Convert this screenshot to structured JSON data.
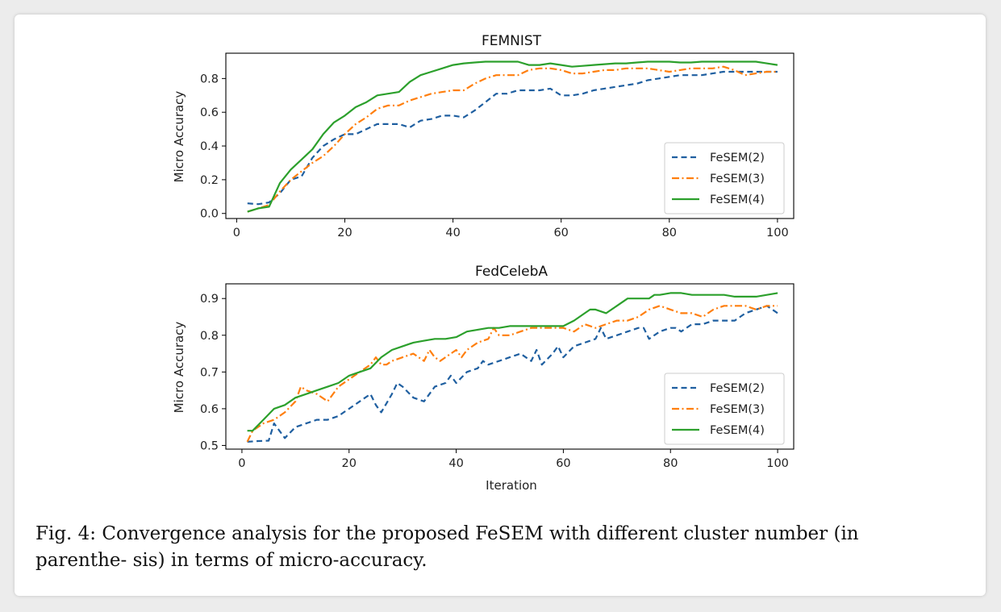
{
  "caption": "Fig. 4: Convergence analysis for the proposed FeSEM with different cluster number (in parenthe- sis) in terms of micro-accuracy.",
  "series_styles": [
    {
      "color": "#1f5fa0",
      "dash": "7,4.5"
    },
    {
      "color": "#ff7f0e",
      "dash": "9,3.5,2,3.5"
    },
    {
      "color": "#2ca02c",
      "dash": ""
    }
  ],
  "chart_data": [
    {
      "type": "line",
      "title": "FEMNIST",
      "xlabel": "",
      "ylabel": "Micro Accuracy",
      "xlim": [
        -2,
        103
      ],
      "ylim": [
        -0.03,
        0.95
      ],
      "xticks": [
        0,
        20,
        40,
        60,
        80,
        100
      ],
      "yticks": [
        0.0,
        0.2,
        0.4,
        0.6,
        0.8
      ],
      "ytick_labels": [
        "0.0",
        "0.2",
        "0.4",
        "0.6",
        "0.8"
      ],
      "legend_position": "lower-right",
      "series": [
        {
          "name": "FeSEM(2)",
          "x": [
            2,
            4,
            6,
            8,
            10,
            12,
            14,
            16,
            18,
            20,
            22,
            24,
            26,
            28,
            30,
            32,
            34,
            36,
            38,
            40,
            42,
            44,
            46,
            48,
            50,
            52,
            54,
            56,
            58,
            60,
            62,
            64,
            66,
            68,
            70,
            72,
            74,
            76,
            78,
            80,
            82,
            84,
            86,
            88,
            90,
            92,
            94,
            96,
            98,
            100
          ],
          "y": [
            0.06,
            0.055,
            0.065,
            0.12,
            0.2,
            0.22,
            0.33,
            0.4,
            0.44,
            0.47,
            0.47,
            0.5,
            0.53,
            0.53,
            0.53,
            0.51,
            0.55,
            0.56,
            0.58,
            0.58,
            0.57,
            0.61,
            0.66,
            0.71,
            0.71,
            0.73,
            0.73,
            0.73,
            0.74,
            0.7,
            0.7,
            0.71,
            0.73,
            0.74,
            0.75,
            0.76,
            0.77,
            0.79,
            0.8,
            0.81,
            0.82,
            0.82,
            0.82,
            0.83,
            0.84,
            0.84,
            0.84,
            0.84,
            0.84,
            0.84
          ]
        },
        {
          "name": "FeSEM(3)",
          "x": [
            2,
            4,
            6,
            8,
            10,
            12,
            14,
            16,
            18,
            20,
            22,
            24,
            26,
            28,
            30,
            32,
            34,
            36,
            38,
            40,
            42,
            44,
            46,
            48,
            50,
            52,
            54,
            56,
            58,
            60,
            62,
            64,
            66,
            68,
            70,
            72,
            74,
            76,
            78,
            80,
            82,
            84,
            86,
            88,
            90,
            92,
            94,
            96,
            98,
            100
          ],
          "y": [
            0.01,
            0.03,
            0.05,
            0.13,
            0.2,
            0.25,
            0.3,
            0.34,
            0.4,
            0.47,
            0.53,
            0.57,
            0.62,
            0.64,
            0.64,
            0.67,
            0.69,
            0.71,
            0.72,
            0.73,
            0.73,
            0.77,
            0.8,
            0.82,
            0.82,
            0.82,
            0.85,
            0.86,
            0.86,
            0.85,
            0.83,
            0.83,
            0.84,
            0.85,
            0.85,
            0.86,
            0.86,
            0.86,
            0.85,
            0.84,
            0.85,
            0.86,
            0.86,
            0.86,
            0.87,
            0.85,
            0.82,
            0.83,
            0.84,
            0.84
          ]
        },
        {
          "name": "FeSEM(4)",
          "x": [
            2,
            4,
            6,
            8,
            10,
            12,
            14,
            16,
            18,
            20,
            22,
            24,
            26,
            28,
            30,
            32,
            34,
            36,
            38,
            40,
            42,
            44,
            46,
            48,
            50,
            52,
            54,
            56,
            58,
            60,
            62,
            64,
            66,
            68,
            70,
            72,
            74,
            76,
            78,
            80,
            82,
            84,
            86,
            88,
            90,
            92,
            94,
            96,
            98,
            100
          ],
          "y": [
            0.01,
            0.03,
            0.04,
            0.18,
            0.26,
            0.32,
            0.38,
            0.47,
            0.54,
            0.58,
            0.63,
            0.66,
            0.7,
            0.71,
            0.72,
            0.78,
            0.82,
            0.84,
            0.86,
            0.88,
            0.89,
            0.895,
            0.9,
            0.9,
            0.9,
            0.9,
            0.88,
            0.88,
            0.89,
            0.88,
            0.87,
            0.875,
            0.88,
            0.885,
            0.89,
            0.89,
            0.895,
            0.9,
            0.9,
            0.9,
            0.895,
            0.895,
            0.9,
            0.9,
            0.9,
            0.9,
            0.9,
            0.9,
            0.89,
            0.88
          ]
        }
      ]
    },
    {
      "type": "line",
      "title": "FedCelebA",
      "xlabel": "Iteration",
      "ylabel": "Micro Accuracy",
      "xlim": [
        -3,
        103
      ],
      "ylim": [
        0.49,
        0.94
      ],
      "xticks": [
        0,
        20,
        40,
        60,
        80,
        100
      ],
      "yticks": [
        0.5,
        0.6,
        0.7,
        0.8,
        0.9
      ],
      "ytick_labels": [
        "0.5",
        "0.6",
        "0.7",
        "0.8",
        "0.9"
      ],
      "legend_position": "lower-right",
      "series": [
        {
          "name": "FeSEM(2)",
          "x": [
            1,
            3,
            5,
            6,
            7,
            8,
            10,
            12,
            14,
            16,
            18,
            19,
            20,
            22,
            24,
            25,
            26,
            28,
            29,
            30,
            32,
            34,
            36,
            38,
            39,
            40,
            42,
            44,
            45,
            46,
            48,
            50,
            52,
            54,
            55,
            56,
            58,
            59,
            60,
            62,
            64,
            66,
            67,
            68,
            70,
            72,
            74,
            75,
            76,
            78,
            80,
            81,
            82,
            84,
            86,
            88,
            90,
            92,
            94,
            96,
            98,
            100
          ],
          "y": [
            0.51,
            0.512,
            0.513,
            0.56,
            0.54,
            0.52,
            0.55,
            0.56,
            0.57,
            0.57,
            0.58,
            0.59,
            0.6,
            0.62,
            0.64,
            0.61,
            0.59,
            0.64,
            0.67,
            0.66,
            0.63,
            0.62,
            0.66,
            0.67,
            0.69,
            0.67,
            0.7,
            0.71,
            0.73,
            0.72,
            0.73,
            0.74,
            0.75,
            0.73,
            0.76,
            0.72,
            0.75,
            0.77,
            0.74,
            0.77,
            0.78,
            0.79,
            0.82,
            0.79,
            0.8,
            0.81,
            0.82,
            0.82,
            0.79,
            0.81,
            0.82,
            0.82,
            0.81,
            0.83,
            0.83,
            0.84,
            0.84,
            0.84,
            0.86,
            0.87,
            0.88,
            0.86
          ]
        },
        {
          "name": "FeSEM(3)",
          "x": [
            1,
            2,
            4,
            6,
            8,
            10,
            11,
            12,
            14,
            16,
            18,
            20,
            22,
            24,
            25,
            26,
            27,
            28,
            30,
            32,
            34,
            35,
            36,
            37,
            38,
            40,
            41,
            42,
            44,
            46,
            47,
            48,
            50,
            52,
            54,
            56,
            58,
            60,
            62,
            64,
            66,
            68,
            70,
            72,
            74,
            76,
            78,
            80,
            82,
            84,
            86,
            88,
            90,
            92,
            94,
            96,
            98,
            100
          ],
          "y": [
            0.51,
            0.54,
            0.56,
            0.57,
            0.59,
            0.62,
            0.66,
            0.65,
            0.64,
            0.62,
            0.66,
            0.68,
            0.7,
            0.72,
            0.74,
            0.72,
            0.72,
            0.73,
            0.74,
            0.75,
            0.73,
            0.76,
            0.74,
            0.73,
            0.74,
            0.76,
            0.74,
            0.76,
            0.78,
            0.79,
            0.82,
            0.8,
            0.8,
            0.81,
            0.82,
            0.82,
            0.82,
            0.82,
            0.81,
            0.83,
            0.82,
            0.83,
            0.84,
            0.84,
            0.85,
            0.87,
            0.88,
            0.87,
            0.86,
            0.86,
            0.85,
            0.87,
            0.88,
            0.88,
            0.88,
            0.87,
            0.88,
            0.88
          ]
        },
        {
          "name": "FeSEM(4)",
          "x": [
            1,
            2,
            4,
            6,
            8,
            10,
            12,
            14,
            16,
            18,
            20,
            22,
            24,
            26,
            28,
            30,
            32,
            34,
            36,
            38,
            40,
            42,
            44,
            46,
            48,
            50,
            52,
            54,
            56,
            58,
            60,
            62,
            64,
            65,
            66,
            67,
            68,
            70,
            72,
            74,
            76,
            77,
            78,
            80,
            82,
            84,
            86,
            88,
            90,
            92,
            94,
            96,
            98,
            100
          ],
          "y": [
            0.54,
            0.54,
            0.57,
            0.6,
            0.61,
            0.63,
            0.64,
            0.65,
            0.66,
            0.67,
            0.69,
            0.7,
            0.71,
            0.74,
            0.76,
            0.77,
            0.78,
            0.785,
            0.79,
            0.79,
            0.795,
            0.81,
            0.815,
            0.82,
            0.82,
            0.825,
            0.825,
            0.825,
            0.825,
            0.825,
            0.825,
            0.84,
            0.86,
            0.87,
            0.87,
            0.865,
            0.86,
            0.88,
            0.9,
            0.9,
            0.9,
            0.91,
            0.91,
            0.915,
            0.915,
            0.91,
            0.91,
            0.91,
            0.91,
            0.905,
            0.905,
            0.905,
            0.91,
            0.915
          ]
        }
      ]
    }
  ]
}
